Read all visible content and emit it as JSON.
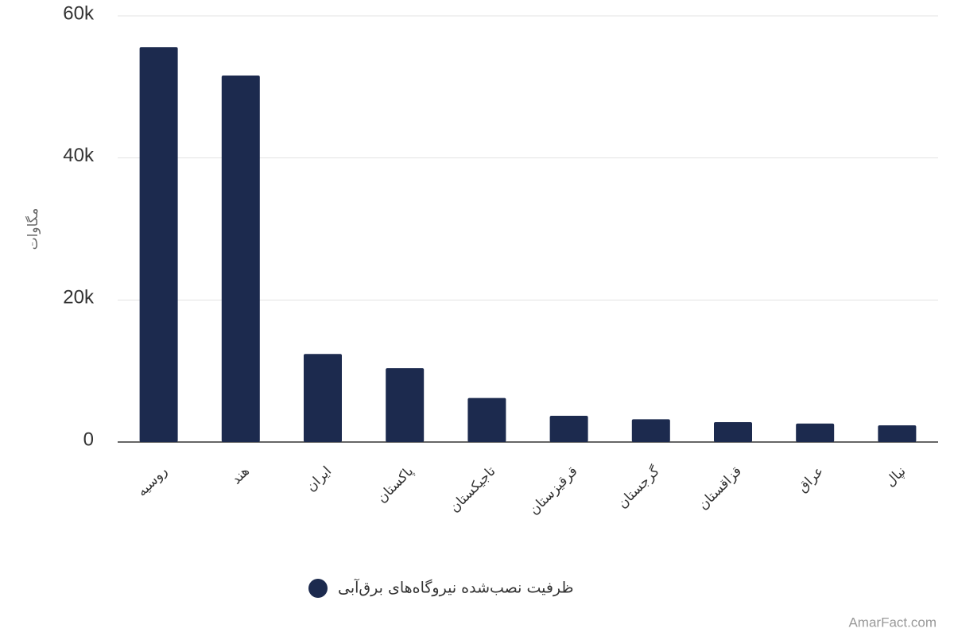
{
  "chart_data": {
    "type": "bar",
    "y_label": "مگاوات",
    "categories": [
      "روسیه",
      "هند",
      "ایران",
      "پاکستان",
      "تاجیکستان",
      "قرقیزستان",
      "گرجستان",
      "قزاقستان",
      "عراق",
      "نپال"
    ],
    "series": [
      {
        "name": "ظرفیت نصب‌شده نیروگاه‌های برق‌آبی",
        "color": "#1c2a4e",
        "values": [
          55600,
          51600,
          12400,
          10400,
          6200,
          3700,
          3200,
          2800,
          2600,
          2350
        ]
      }
    ],
    "ylim": [
      0,
      60000
    ],
    "yticks": [
      {
        "value": 0,
        "label": "0"
      },
      {
        "value": 20000,
        "label": "20k"
      },
      {
        "value": 40000,
        "label": "40k"
      },
      {
        "value": 60000,
        "label": "60k"
      }
    ],
    "grid": true,
    "legend": "bottom",
    "watermark": "AmarFact.com"
  }
}
